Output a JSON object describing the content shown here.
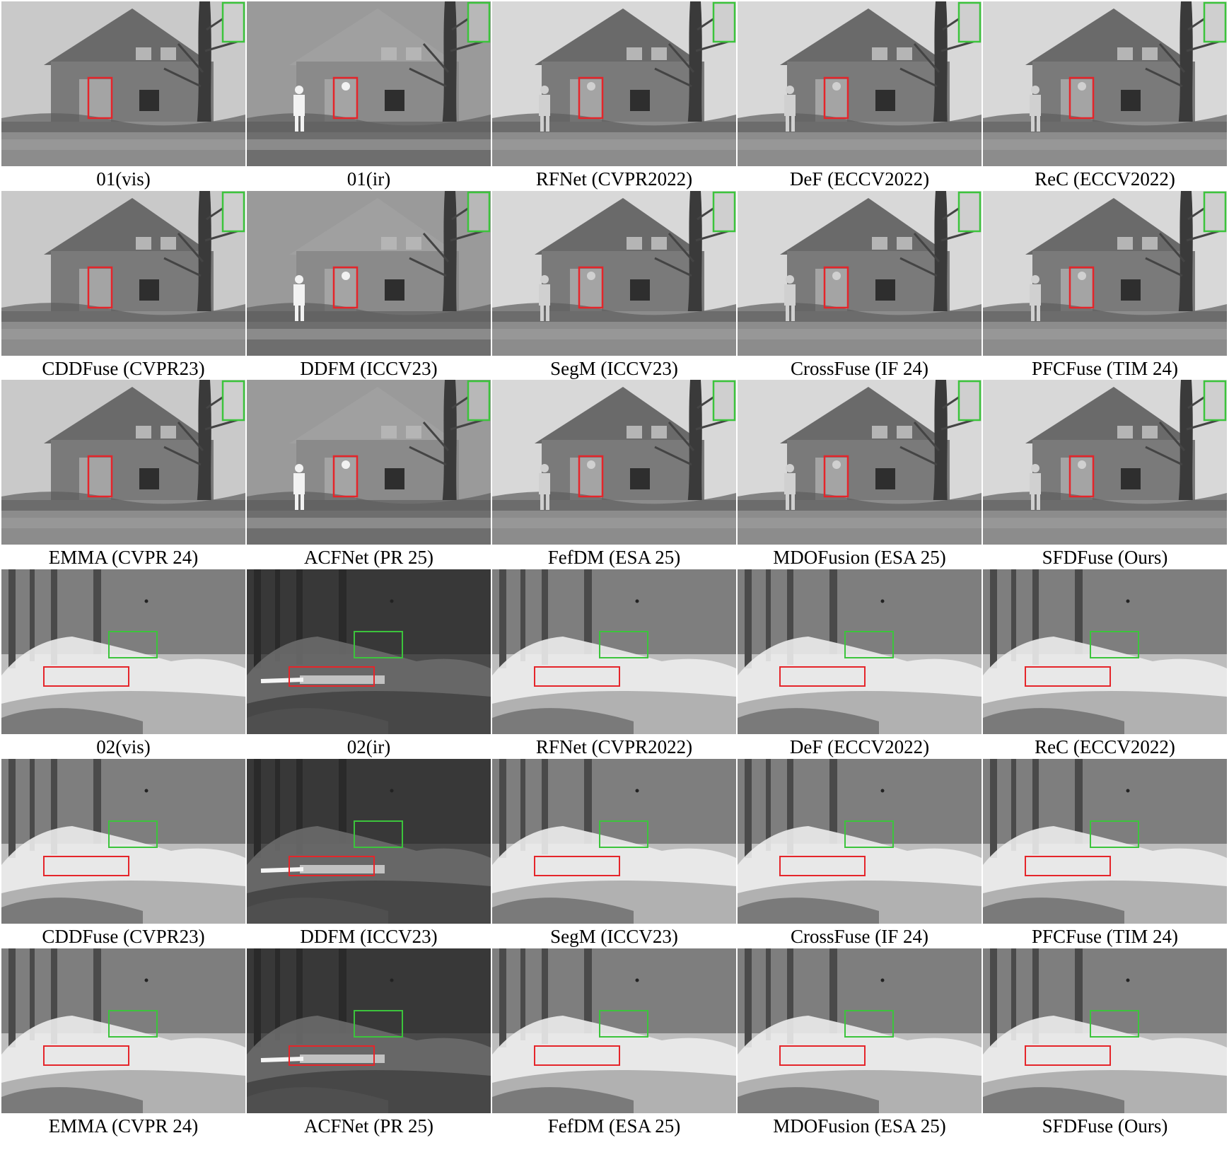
{
  "figure": {
    "rows": [
      {
        "scene": "house",
        "captions": [
          "01(vis)",
          "01(ir)",
          "RFNet (CVPR2022)",
          "DeF (ECCV2022)",
          "ReC (ECCV2022)"
        ]
      },
      {
        "scene": "house",
        "captions": [
          "CDDFuse (CVPR23)",
          "DDFM (ICCV23)",
          "SegM (ICCV23)",
          "CrossFuse (IF 24)",
          "PFCFuse (TIM 24)"
        ]
      },
      {
        "scene": "house",
        "captions": [
          "EMMA (CVPR 24)",
          "ACFNet (PR 25)",
          "FefDM (ESA 25)",
          "MDOFusion (ESA 25)",
          "SFDFuse (Ours)"
        ]
      },
      {
        "scene": "smoke",
        "captions": [
          "02(vis)",
          "02(ir)",
          "RFNet (CVPR2022)",
          "DeF (ECCV2022)",
          "ReC (ECCV2022)"
        ]
      },
      {
        "scene": "smoke",
        "captions": [
          "CDDFuse (CVPR23)",
          "DDFM (ICCV23)",
          "SegM (ICCV23)",
          "CrossFuse (IF 24)",
          "PFCFuse (TIM 24)"
        ]
      },
      {
        "scene": "smoke",
        "captions": [
          "EMMA (CVPR 24)",
          "ACFNet (PR 25)",
          "FefDM (ESA 25)",
          "MDOFusion (ESA 25)",
          "SFDFuse (Ours)"
        ]
      }
    ],
    "colors": {
      "red_box": "#e5252a",
      "green_box": "#3cc43c"
    }
  }
}
